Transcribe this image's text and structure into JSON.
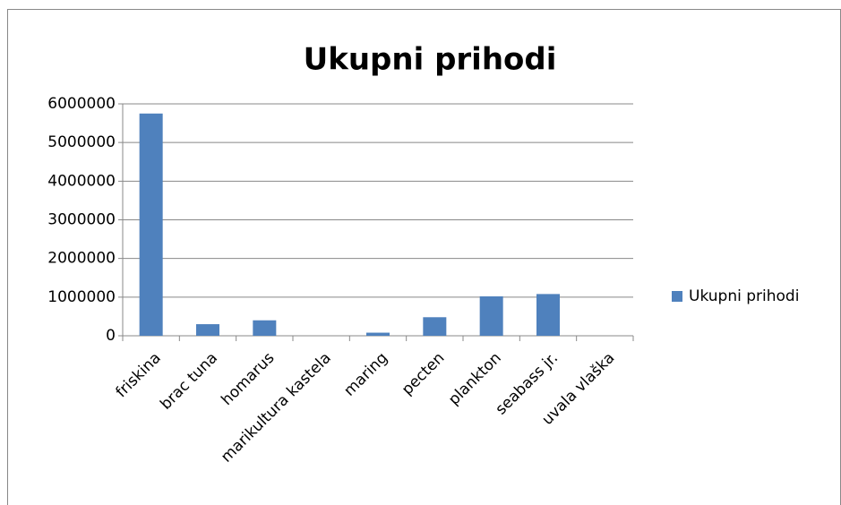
{
  "chart_data": {
    "type": "bar",
    "title": "Ukupni prihodi",
    "categories": [
      "friskina",
      "brac tuna",
      "homarus",
      "marikultura kastela",
      "maring",
      "pecten",
      "plankton",
      "seabass jr.",
      "uvala vlaška"
    ],
    "series": [
      {
        "name": "Ukupni prihodi",
        "color": "#4f81bd",
        "values": [
          5750000,
          300000,
          400000,
          0,
          80000,
          480000,
          1020000,
          1080000,
          0
        ]
      }
    ],
    "ylim": [
      0,
      6000000
    ],
    "yticks": [
      0,
      1000000,
      2000000,
      3000000,
      4000000,
      5000000,
      6000000
    ],
    "grid": true,
    "legend": "right"
  }
}
